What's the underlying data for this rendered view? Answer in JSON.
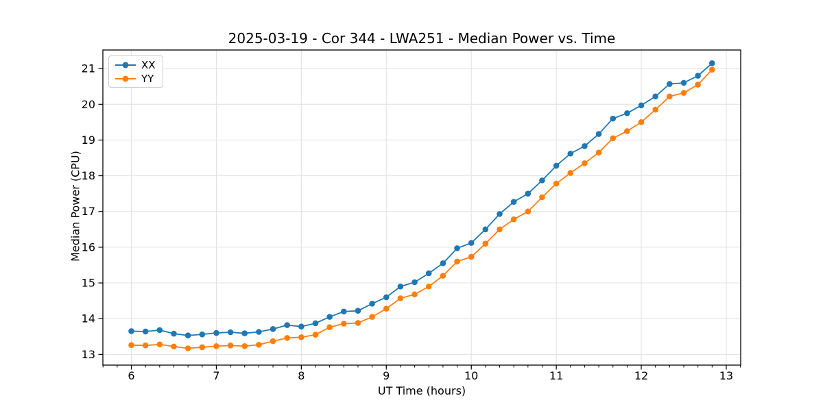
{
  "chart_data": {
    "type": "line",
    "title": "2025-03-19 - Cor 344 - LWA251 - Median Power vs. Time",
    "xlabel": "UT Time (hours)",
    "ylabel": "Median Power (CPU)",
    "x": [
      6.0,
      6.1667,
      6.3333,
      6.5,
      6.6667,
      6.8333,
      7.0,
      7.1667,
      7.3333,
      7.5,
      7.6667,
      7.8333,
      8.0,
      8.1667,
      8.3333,
      8.5,
      8.6667,
      8.8333,
      9.0,
      9.1667,
      9.3333,
      9.5,
      9.6667,
      9.8333,
      10.0,
      10.1667,
      10.3333,
      10.5,
      10.6667,
      10.8333,
      11.0,
      11.1667,
      11.3333,
      11.5,
      11.6667,
      11.8333,
      12.0,
      12.1667,
      12.3333,
      12.5,
      12.6667,
      12.8333
    ],
    "series": [
      {
        "name": "XX",
        "color": "#1f77b4",
        "values": [
          13.65,
          13.64,
          13.68,
          13.58,
          13.53,
          13.56,
          13.6,
          13.62,
          13.59,
          13.63,
          13.71,
          13.82,
          13.78,
          13.87,
          14.05,
          14.2,
          14.22,
          14.42,
          14.6,
          14.9,
          15.02,
          15.27,
          15.55,
          15.97,
          16.12,
          16.5,
          16.93,
          17.27,
          17.5,
          17.87,
          18.28,
          18.62,
          18.83,
          19.17,
          19.6,
          19.75,
          19.97,
          20.22,
          20.57,
          20.6,
          20.8,
          21.15
        ]
      },
      {
        "name": "YY",
        "color": "#ff7f0e",
        "values": [
          13.26,
          13.25,
          13.28,
          13.22,
          13.17,
          13.2,
          13.23,
          13.25,
          13.23,
          13.27,
          13.37,
          13.46,
          13.48,
          13.55,
          13.76,
          13.86,
          13.88,
          14.05,
          14.28,
          14.57,
          14.68,
          14.9,
          15.2,
          15.6,
          15.73,
          16.1,
          16.5,
          16.78,
          17.0,
          17.4,
          17.78,
          18.08,
          18.35,
          18.65,
          19.05,
          19.25,
          19.5,
          19.85,
          20.22,
          20.32,
          20.55,
          20.97
        ]
      }
    ],
    "xlim": [
      5.665,
      13.17
    ],
    "ylim": [
      12.7,
      21.52
    ],
    "xticks": [
      6,
      7,
      8,
      9,
      10,
      11,
      12,
      13
    ],
    "yticks": [
      13,
      14,
      15,
      16,
      17,
      18,
      19,
      20,
      21
    ],
    "x_minor_step": 0.16667,
    "grid": true,
    "legend_position": "upper left",
    "theme": {
      "grid_color": "#e0e0e0",
      "spine_color": "#000000",
      "text_color": "#000000",
      "background": "#ffffff"
    }
  }
}
